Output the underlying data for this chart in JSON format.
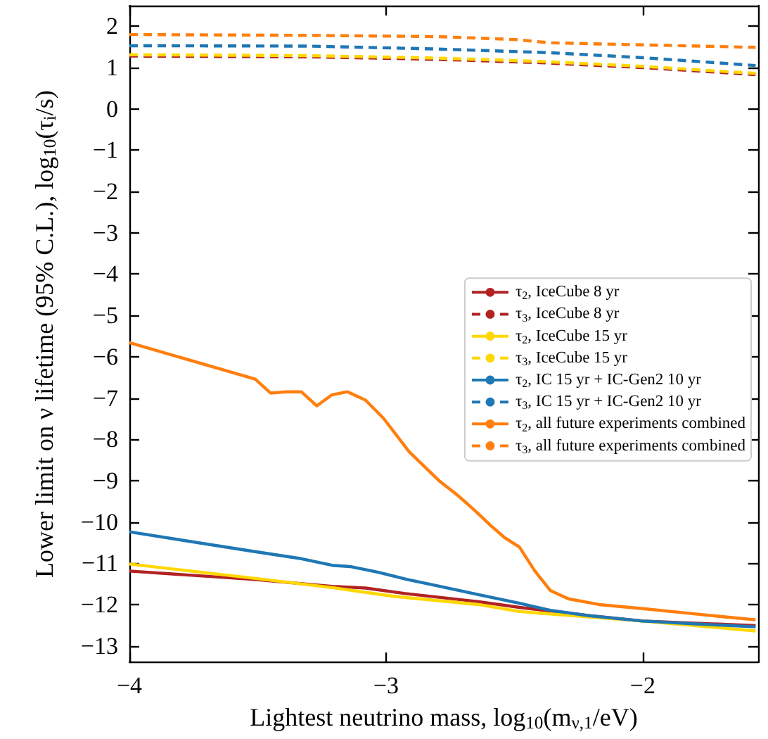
{
  "chart_data": {
    "type": "line",
    "xlabel": "Lightest neutrino mass, log$_{10}$(m$_{ν,1}$/eV)",
    "ylabel": "Lower limit on ν lifetime (95% C.L.), log$_{10}$(τ$_{i}$/s)",
    "xlim": [
      -4,
      -1.55
    ],
    "ylim": [
      -13.4,
      2.5
    ],
    "xticks": [
      -4,
      -3,
      -2
    ],
    "yticks": [
      -13,
      -12,
      -11,
      -10,
      -9,
      -8,
      -7,
      -6,
      -5,
      -4,
      -3,
      -2,
      -1,
      0,
      1,
      2
    ],
    "grid": false,
    "legend": "right",
    "marker": "none",
    "series": [
      {
        "name": "τ$_{2}$, IceCube 8 yr",
        "color": "#b22222",
        "line_style": "solid",
        "x": [
          -4,
          -3.52,
          -3.21,
          -3.08,
          -2.93,
          -2.64,
          -2.48,
          -2.21,
          -2.0,
          -1.56
        ],
        "values": [
          -11.19,
          -11.39,
          -11.56,
          -11.6,
          -11.73,
          -11.93,
          -12.07,
          -12.27,
          -12.4,
          -12.51
        ]
      },
      {
        "name": "τ$_{3}$, IceCube 8 yr",
        "color": "#b22222",
        "line_style": "dashed",
        "x": [
          -4,
          -3.3,
          -2.8,
          -2.4,
          -2.0,
          -1.56
        ],
        "values": [
          1.28,
          1.26,
          1.2,
          1.12,
          1.0,
          0.83
        ]
      },
      {
        "name": "τ$_{2}$, IceCube 15 yr",
        "color": "#ffd700",
        "line_style": "solid",
        "x": [
          -4,
          -3.52,
          -3.21,
          -2.97,
          -2.64,
          -2.48,
          -2.21,
          -2.0,
          -1.56
        ],
        "values": [
          -11.02,
          -11.36,
          -11.59,
          -11.8,
          -12.0,
          -12.17,
          -12.3,
          -12.4,
          -12.64
        ]
      },
      {
        "name": "τ$_{3}$, IceCube 15 yr",
        "color": "#ffd700",
        "line_style": "dashed",
        "x": [
          -4,
          -3.3,
          -2.8,
          -2.4,
          -2.0,
          -1.56
        ],
        "values": [
          1.31,
          1.29,
          1.23,
          1.15,
          1.03,
          0.86
        ]
      },
      {
        "name": "τ$_{2}$, IC 15 yr + IC-Gen2 10 yr",
        "color": "#1f77b4",
        "line_style": "solid",
        "x": [
          -4,
          -3.52,
          -3.34,
          -3.21,
          -3.14,
          -3.03,
          -2.92,
          -2.79,
          -2.64,
          -2.48,
          -2.36,
          -2.21,
          -2.0,
          -1.79,
          -1.56
        ],
        "values": [
          -10.24,
          -10.71,
          -10.88,
          -11.05,
          -11.08,
          -11.22,
          -11.39,
          -11.56,
          -11.76,
          -11.97,
          -12.14,
          -12.27,
          -12.4,
          -12.47,
          -12.54
        ]
      },
      {
        "name": "τ$_{3}$, IC 15 yr + IC-Gen2 10 yr",
        "color": "#1f77b4",
        "line_style": "dashed",
        "x": [
          -4,
          -3.3,
          -2.8,
          -2.36,
          -2.0,
          -1.56
        ],
        "values": [
          1.53,
          1.52,
          1.45,
          1.36,
          1.24,
          1.05
        ]
      },
      {
        "name": "τ$_{2}$, all future experiments combined",
        "color": "#ff7f0e",
        "line_style": "solid",
        "x": [
          -4,
          -3.51,
          -3.45,
          -3.39,
          -3.33,
          -3.27,
          -3.21,
          -3.15,
          -3.08,
          -3.01,
          -2.91,
          -2.79,
          -2.72,
          -2.66,
          -2.59,
          -2.54,
          -2.48,
          -2.42,
          -2.36,
          -2.29,
          -2.17,
          -2.0,
          -1.84,
          -1.68,
          -1.56
        ],
        "values": [
          -5.66,
          -6.54,
          -6.88,
          -6.85,
          -6.85,
          -7.19,
          -6.92,
          -6.85,
          -7.05,
          -7.49,
          -8.3,
          -9.02,
          -9.36,
          -9.69,
          -10.1,
          -10.37,
          -10.61,
          -11.19,
          -11.66,
          -11.86,
          -12.0,
          -12.1,
          -12.2,
          -12.3,
          -12.37
        ]
      },
      {
        "name": "τ$_{3}$, all future experiments combined",
        "color": "#ff7f0e",
        "line_style": "dashed",
        "x": [
          -4,
          -3.3,
          -2.8,
          -2.5,
          -2.36,
          -2.0,
          -1.56
        ],
        "values": [
          1.8,
          1.78,
          1.75,
          1.68,
          1.6,
          1.55,
          1.49
        ]
      }
    ]
  }
}
